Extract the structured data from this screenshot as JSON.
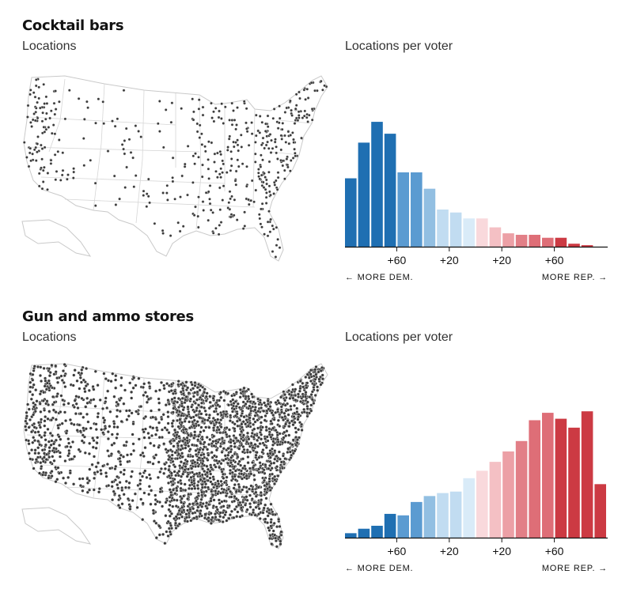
{
  "palette": {
    "dem": [
      "#1f6fb2",
      "#1f6fb2",
      "#1f6fb2",
      "#1f6fb2",
      "#5b9bd1",
      "#5b9bd1",
      "#92bfe2",
      "#c1dcf1",
      "#c1dcf1",
      "#d9ebf8",
      "#f9d9dc",
      "#f4c0c4",
      "#eca0a6",
      "#e27f87",
      "#de6e77",
      "#de6e77",
      "#cc3a43",
      "#cc3a43",
      "#cc3a43",
      "#cc3a43"
    ],
    "dot": "#3a3a3a",
    "state_line": "#d6d6d6",
    "axis": "#121212"
  },
  "charts": [
    {
      "title": "Cocktail bars",
      "map_label": "Locations",
      "chart_label": "Locations per voter",
      "more_dem": "← MORE DEM.",
      "more_rep": "MORE REP. →",
      "dot_density": "sparse"
    },
    {
      "title": "Gun and ammo stores",
      "map_label": "Locations",
      "chart_label": "Locations per voter",
      "more_dem": "← MORE DEM.",
      "more_rep": "MORE REP. →",
      "dot_density": "dense"
    }
  ],
  "chart_data": [
    {
      "type": "bar",
      "title": "Cocktail bars",
      "ylabel": "Locations per voter",
      "x_tick_labels": [
        "+60",
        "+20",
        "+20",
        "+60"
      ],
      "x_tick_positions": [
        4,
        8,
        12,
        16
      ],
      "values": [
        0.46,
        0.7,
        0.84,
        0.76,
        0.5,
        0.5,
        0.39,
        0.25,
        0.23,
        0.19,
        0.19,
        0.13,
        0.09,
        0.08,
        0.08,
        0.06,
        0.06,
        0.02,
        0.01,
        0
      ],
      "ylim": [
        0,
        1
      ]
    },
    {
      "type": "bar",
      "title": "Gun and ammo stores",
      "ylabel": "Locations per voter",
      "x_tick_labels": [
        "+60",
        "+20",
        "+20",
        "+60"
      ],
      "x_tick_positions": [
        4,
        8,
        12,
        16
      ],
      "values": [
        0.03,
        0.06,
        0.08,
        0.16,
        0.15,
        0.24,
        0.28,
        0.3,
        0.31,
        0.4,
        0.45,
        0.51,
        0.58,
        0.65,
        0.79,
        0.84,
        0.8,
        0.74,
        0.85,
        0.36
      ],
      "ylim": [
        0,
        1
      ]
    }
  ]
}
